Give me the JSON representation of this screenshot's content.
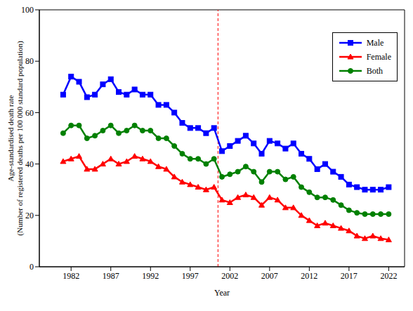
{
  "chart_data": {
    "type": "line",
    "xlabel": "Year",
    "ylabel": "Age-standardised death rate\n(Number of registered deaths per 100 000 standard population)",
    "x": [
      1981,
      1982,
      1983,
      1984,
      1985,
      1986,
      1987,
      1988,
      1989,
      1990,
      1991,
      1992,
      1993,
      1994,
      1995,
      1996,
      1997,
      1998,
      1999,
      2000,
      2001,
      2002,
      2003,
      2004,
      2005,
      2006,
      2007,
      2008,
      2009,
      2010,
      2011,
      2012,
      2013,
      2014,
      2015,
      2016,
      2017,
      2018,
      2019,
      2020,
      2021,
      2022
    ],
    "series": [
      {
        "name": "Male",
        "color": "#0000ff",
        "marker": "square",
        "values": [
          67,
          74,
          72,
          66,
          67,
          71,
          73,
          68,
          67,
          69,
          67,
          67,
          63,
          63,
          60,
          56,
          54,
          54,
          52,
          54,
          45,
          47,
          49,
          51,
          48,
          44,
          49,
          48,
          46,
          48,
          44,
          42,
          38,
          40,
          37,
          35,
          32,
          31,
          30,
          30,
          30,
          31
        ]
      },
      {
        "name": "Female",
        "color": "#ff0000",
        "marker": "triangle",
        "values": [
          41,
          42,
          43,
          38,
          38,
          40,
          42,
          40,
          41,
          43,
          42,
          41,
          39,
          38,
          35,
          33,
          32,
          31,
          30,
          31,
          26,
          25,
          27,
          28,
          27,
          24,
          27,
          26,
          23,
          23,
          20,
          18,
          16,
          17,
          16,
          15,
          14,
          12,
          11,
          12,
          11,
          10.5
        ]
      },
      {
        "name": "Both",
        "color": "#008000",
        "marker": "circle",
        "values": [
          52,
          55,
          55,
          50,
          51,
          53,
          55,
          52,
          53,
          55,
          53,
          53,
          50,
          50,
          47,
          44,
          42,
          42,
          40,
          42,
          35,
          36,
          37,
          39,
          37,
          33,
          37,
          37,
          34,
          35,
          31,
          29,
          27,
          27,
          26,
          24,
          22,
          21,
          20.5,
          20.5,
          20.5,
          20.5
        ]
      }
    ],
    "xlim": [
      1978,
      2024
    ],
    "xticks": [
      1982,
      1987,
      1992,
      1997,
      2002,
      2007,
      2012,
      2017,
      2022
    ],
    "ylim": [
      0,
      100
    ],
    "yticks": [
      0,
      20,
      40,
      60,
      80,
      100
    ],
    "grid": false,
    "legend": "upper right",
    "vlines": [
      {
        "x": 2000.5,
        "color": "#ff0000",
        "line_style": "dashed"
      }
    ]
  }
}
